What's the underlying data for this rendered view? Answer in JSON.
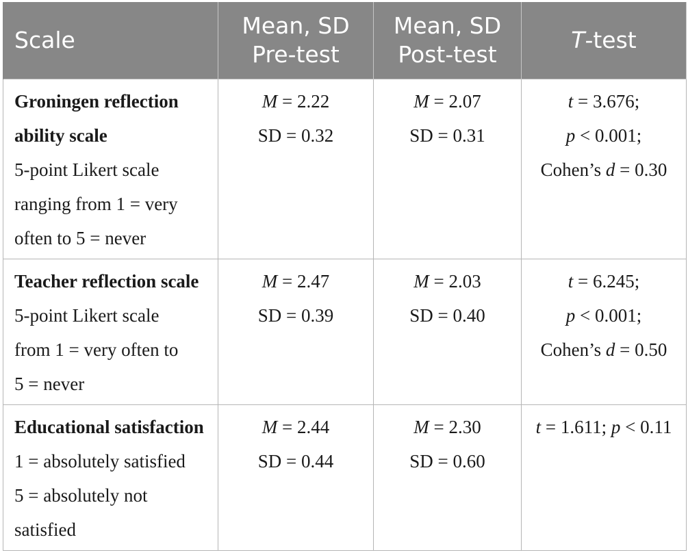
{
  "table": {
    "headers": {
      "scale": "Scale",
      "pre_line1": "Mean, SD",
      "pre_line2": "Pre-test",
      "post_line1": "Mean, SD",
      "post_line2": "Post-test",
      "ttest_italic": "T",
      "ttest_rest": "-test"
    },
    "rows": [
      {
        "name": "Groningen reflection ability scale",
        "name_line1": "Groningen reflection",
        "name_line2": "ability scale",
        "desc_lines": [
          "5-point Likert scale",
          "ranging from 1 = very",
          "often to 5 = never"
        ],
        "pre_m": "2.22",
        "pre_sd": "0.32",
        "post_m": "2.07",
        "post_sd": "0.31",
        "t": "3.676",
        "p": "< 0.001",
        "d": "0.30"
      },
      {
        "name": "Teacher reflection scale",
        "desc_lines": [
          "5-point Likert scale",
          "from 1 = very often to",
          "5 = never"
        ],
        "pre_m": "2.47",
        "pre_sd": "0.39",
        "post_m": "2.03",
        "post_sd": "0.40",
        "t": "6.245",
        "p": "< 0.001",
        "d": "0.50"
      },
      {
        "name": "Educational satisfaction",
        "desc_lines": [
          "1 = absolutely satisfied",
          "5 = absolutely not",
          "satisfied"
        ],
        "pre_m": "2.44",
        "pre_sd": "0.44",
        "post_m": "2.30",
        "post_sd": "0.60",
        "t": "1.611",
        "p": "< 0.11"
      }
    ],
    "labels": {
      "m": "M",
      "sd": "SD",
      "t": "t",
      "p": "p",
      "cohens": "Cohen’s",
      "d": "d",
      "eq": " = "
    }
  }
}
